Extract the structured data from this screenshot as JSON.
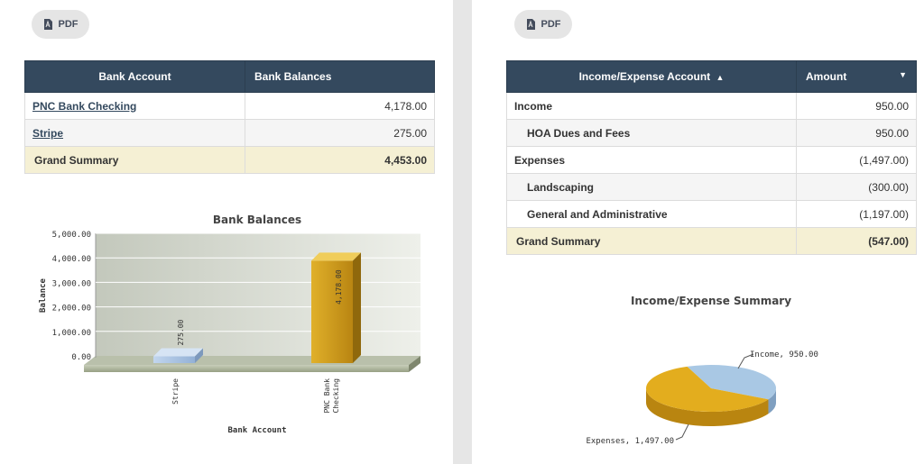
{
  "left_panel": {
    "pdf_label": "PDF",
    "table": {
      "headers": [
        "Bank Account",
        "Bank Balances"
      ],
      "rows": [
        {
          "account": "PNC Bank Checking",
          "balance": "4,178.00"
        },
        {
          "account": "Stripe",
          "balance": "275.00"
        }
      ],
      "summary": {
        "label": "Grand Summary",
        "value": "4,453.00"
      }
    }
  },
  "right_panel": {
    "pdf_label": "PDF",
    "table": {
      "headers": [
        "Income/Expense Account",
        "Amount"
      ],
      "sort_asc_icon": "caret-up-icon",
      "filter_icon": "caret-down-icon",
      "rows": [
        {
          "account": "Income",
          "amount": "950.00"
        },
        {
          "account": "HOA Dues and Fees",
          "amount": "950.00"
        },
        {
          "account": "Expenses",
          "amount": "(1,497.00)"
        },
        {
          "account": "Landscaping",
          "amount": "(300.00)"
        },
        {
          "account": "General and Administrative",
          "amount": "(1,197.00)"
        }
      ],
      "summary": {
        "label": "Grand Summary",
        "value": "(547.00)"
      }
    }
  },
  "chart_data": [
    {
      "type": "bar",
      "title": "Bank Balances",
      "xlabel": "Bank Account",
      "ylabel": "Balance",
      "categories": [
        "Stripe",
        "PNC Bank Checking"
      ],
      "values": [
        275.0,
        4178.0
      ],
      "value_labels": [
        "275.00",
        "4,178.00"
      ],
      "yticks": [
        "0.00",
        "1,000.00",
        "2,000.00",
        "3,000.00",
        "4,000.00",
        "5,000.00"
      ],
      "ylim": [
        0,
        5000
      ],
      "colors": [
        "#a9c4e2",
        "#c9961a"
      ]
    },
    {
      "type": "pie",
      "title": "Income/Expense Summary",
      "slices": [
        {
          "label": "Income",
          "value": 950.0,
          "text": "Income, 950.00",
          "color": "#a9c8e4"
        },
        {
          "label": "Expenses",
          "value": 1497.0,
          "text": "Expenses, 1,497.00",
          "color": "#e3ad1e"
        }
      ]
    }
  ]
}
